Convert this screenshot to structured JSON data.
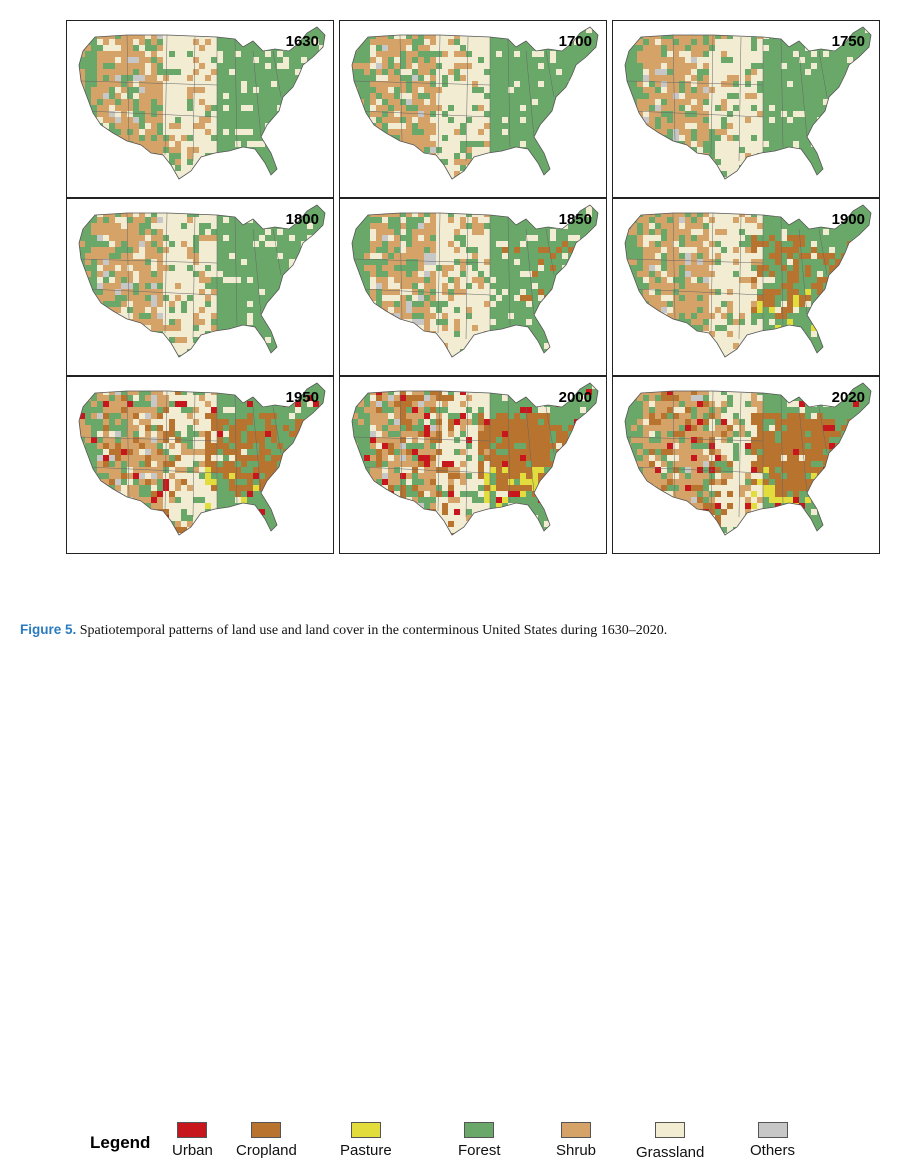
{
  "panels": [
    {
      "year": "1630",
      "phase": 0
    },
    {
      "year": "1700",
      "phase": 0
    },
    {
      "year": "1750",
      "phase": 0
    },
    {
      "year": "1800",
      "phase": 0
    },
    {
      "year": "1850",
      "phase": 1
    },
    {
      "year": "1900",
      "phase": 2
    },
    {
      "year": "1950",
      "phase": 3
    },
    {
      "year": "2000",
      "phase": 4
    },
    {
      "year": "2020",
      "phase": 4
    }
  ],
  "legend": {
    "title": "Legend",
    "items": [
      {
        "label": "Urban",
        "color": "#c8161d"
      },
      {
        "label": "Cropland",
        "color": "#b8742e"
      },
      {
        "label": "Pasture",
        "color": "#e2dc3c"
      },
      {
        "label": "Forest",
        "color": "#6aa86a"
      },
      {
        "label": "Shrub",
        "color": "#d5a367"
      },
      {
        "label": "Grassland",
        "color": "#f1ecd2"
      },
      {
        "label": "Others",
        "color": "#c7c7c7"
      }
    ]
  },
  "caption": {
    "figure_label": "Figure 5.",
    "text": " Spatiotemporal patterns of land use and land cover in the conterminous United States during 1630–2020."
  }
}
